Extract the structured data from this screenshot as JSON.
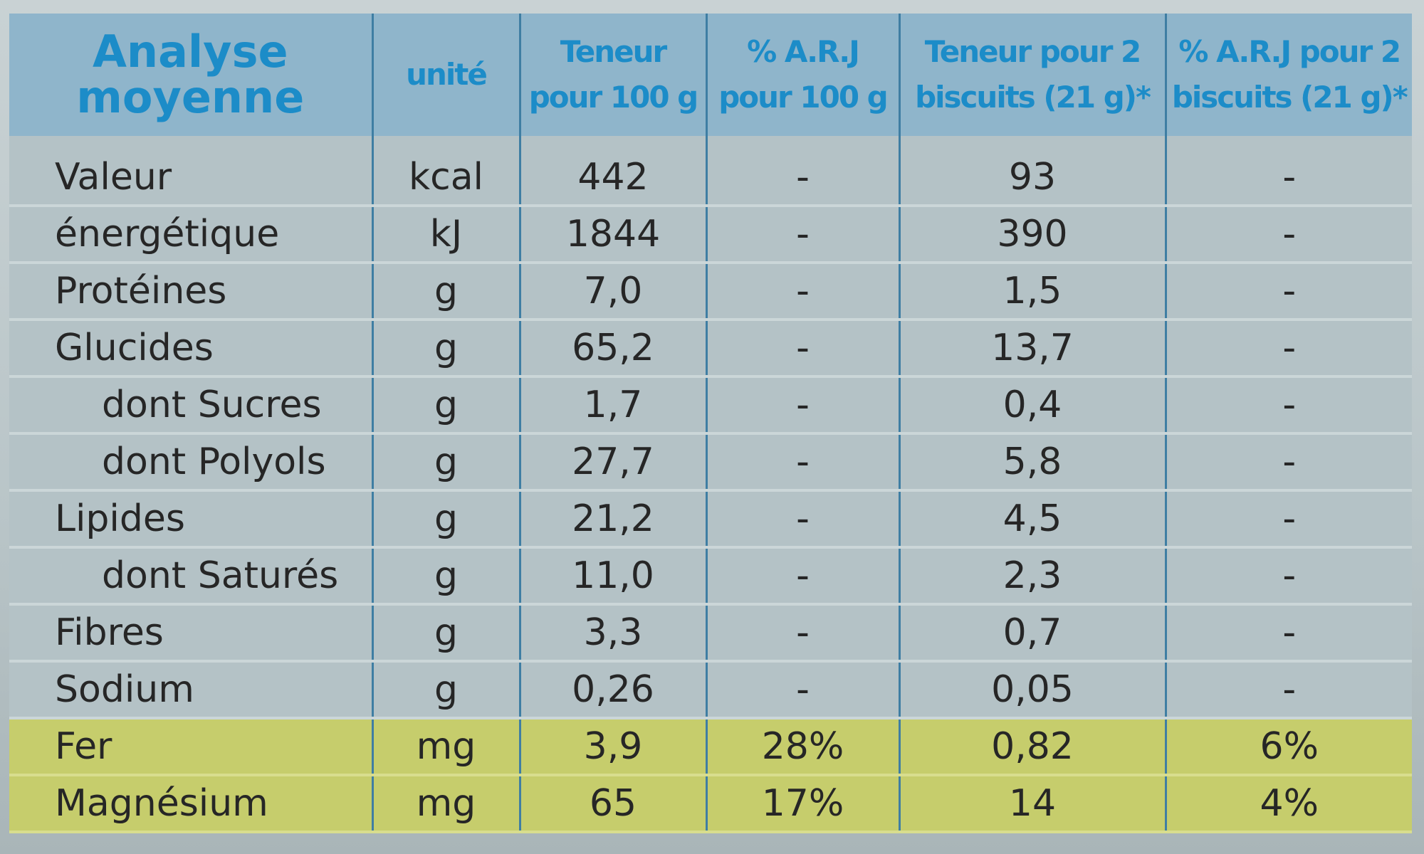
{
  "table": {
    "headers": [
      "Analyse moyenne",
      "unité",
      "Teneur pour 100 g",
      "% A.R.J pour 100 g",
      "Teneur pour 2 biscuits (21 g)*",
      "% A.R.J pour 2 biscuits (21 g)*"
    ],
    "rows": [
      {
        "label": "Valeur",
        "cells": [
          "kcal",
          "442",
          "-",
          "93",
          "-"
        ]
      },
      {
        "label": "énergétique",
        "cells": [
          "kJ",
          "1844",
          "-",
          "390",
          "-"
        ]
      },
      {
        "label": "Protéines",
        "cells": [
          "g",
          "7,0",
          "-",
          "1,5",
          "-"
        ]
      },
      {
        "label": "Glucides",
        "cells": [
          "g",
          "65,2",
          "-",
          "13,7",
          "-"
        ]
      },
      {
        "label": "dont Sucres",
        "indent": true,
        "cells": [
          "g",
          "1,7",
          "-",
          "0,4",
          "-"
        ]
      },
      {
        "label": "dont Polyols",
        "indent": true,
        "cells": [
          "g",
          "27,7",
          "-",
          "5,8",
          "-"
        ]
      },
      {
        "label": "Lipides",
        "cells": [
          "g",
          "21,2",
          "-",
          "4,5",
          "-"
        ]
      },
      {
        "label": "dont Saturés",
        "indent": true,
        "cells": [
          "g",
          "11,0",
          "-",
          "2,3",
          "-"
        ]
      },
      {
        "label": "Fibres",
        "cells": [
          "g",
          "3,3",
          "-",
          "0,7",
          "-"
        ]
      },
      {
        "label": "Sodium",
        "cells": [
          "g",
          "0,26",
          "-",
          "0,05",
          "-"
        ]
      },
      {
        "label": "Fer",
        "highlight": true,
        "cells": [
          "mg",
          "3,9",
          "28%",
          "0,82",
          "6%"
        ]
      },
      {
        "label": "Magnésium",
        "highlight": true,
        "cells": [
          "mg",
          "65",
          "17%",
          "14",
          "4%"
        ]
      }
    ]
  }
}
